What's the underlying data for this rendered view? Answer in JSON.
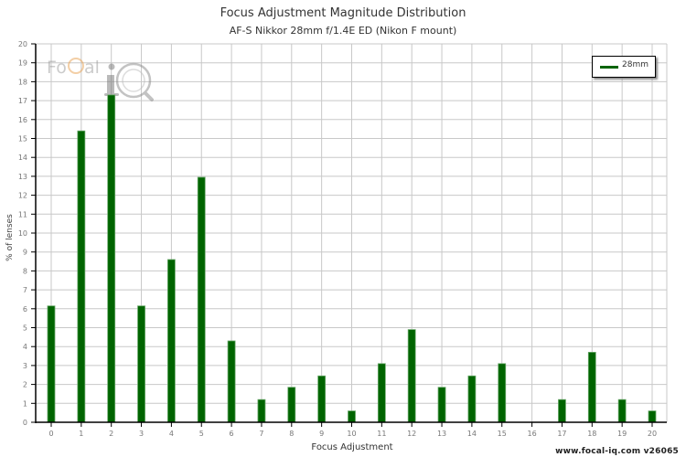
{
  "header": {
    "title": "Focus Adjustment Magnitude Distribution",
    "subtitle": "AF-S Nikkor 28mm f/1.4E ED (Nikon F mount)"
  },
  "footer": {
    "credit": "www.focal-iq.com  v26065"
  },
  "logo": {
    "text_left": "Fo",
    "text_c": "C",
    "text_right": "al",
    "text_iq": "iQ"
  },
  "legend": {
    "label": "28mm",
    "color": "#006400"
  },
  "colors": {
    "bar": "#006400",
    "bar_edge": "#6aa86a",
    "grid": "#c8c8c8",
    "axis": "#000000"
  },
  "chart_data": {
    "type": "bar",
    "title": "Focus Adjustment Magnitude Distribution",
    "subtitle": "AF-S Nikkor 28mm f/1.4E ED (Nikon F mount)",
    "xlabel": "Focus Adjustment",
    "ylabel": "% of lenses",
    "ylim": [
      0,
      20
    ],
    "yticks": [
      0,
      1,
      2,
      3,
      4,
      5,
      6,
      7,
      8,
      9,
      10,
      11,
      12,
      13,
      14,
      15,
      16,
      17,
      18,
      19,
      20
    ],
    "grid": true,
    "legend_position": "top-right",
    "categories": [
      "0",
      "1",
      "2",
      "3",
      "4",
      "5",
      "6",
      "7",
      "8",
      "9",
      "10",
      "11",
      "12",
      "13",
      "14",
      "15",
      "16",
      "17",
      "18",
      "19",
      "20"
    ],
    "series": [
      {
        "name": "28mm",
        "color": "#006400",
        "values": [
          6.15,
          15.4,
          17.3,
          6.15,
          8.6,
          12.95,
          4.3,
          1.2,
          1.85,
          2.45,
          0.6,
          3.1,
          4.9,
          1.85,
          2.45,
          3.1,
          0,
          1.2,
          3.7,
          1.2,
          0.6
        ]
      }
    ]
  }
}
